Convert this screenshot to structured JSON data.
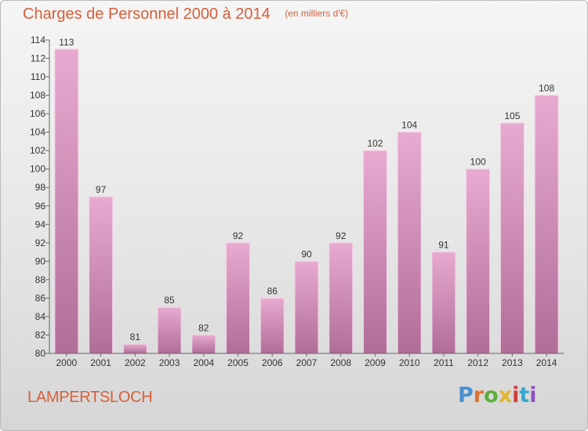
{
  "header": {
    "title": "Charges de Personnel 2000 à 2014",
    "subtitle": "(en milliers d'€)"
  },
  "footer": {
    "commune": "LAMPERTSLOCH",
    "logo_text": "Proxiti"
  },
  "colors": {
    "title": "#d75f3a",
    "bar_top": "#e8aad0",
    "bar_bottom": "#b06d98",
    "bar_edge": "#f4d3e7",
    "logo": [
      "#4a8fd1",
      "#e36f2b",
      "#5cae3a",
      "#e3b42b",
      "#d23b3b",
      "#3aa6d0",
      "#8a4fc4"
    ]
  },
  "chart_data": {
    "type": "bar",
    "categories": [
      "2000",
      "2001",
      "2002",
      "2003",
      "2004",
      "2005",
      "2006",
      "2007",
      "2008",
      "2009",
      "2010",
      "2011",
      "2012",
      "2013",
      "2014"
    ],
    "values": [
      113,
      97,
      81,
      85,
      82,
      92,
      86,
      90,
      92,
      102,
      104,
      91,
      100,
      105,
      108
    ],
    "ylim": [
      80,
      114
    ],
    "yticks": [
      80,
      82,
      84,
      86,
      88,
      90,
      92,
      94,
      96,
      98,
      100,
      102,
      104,
      106,
      108,
      110,
      112,
      114
    ],
    "grid": false,
    "xlabel": "",
    "ylabel": ""
  }
}
